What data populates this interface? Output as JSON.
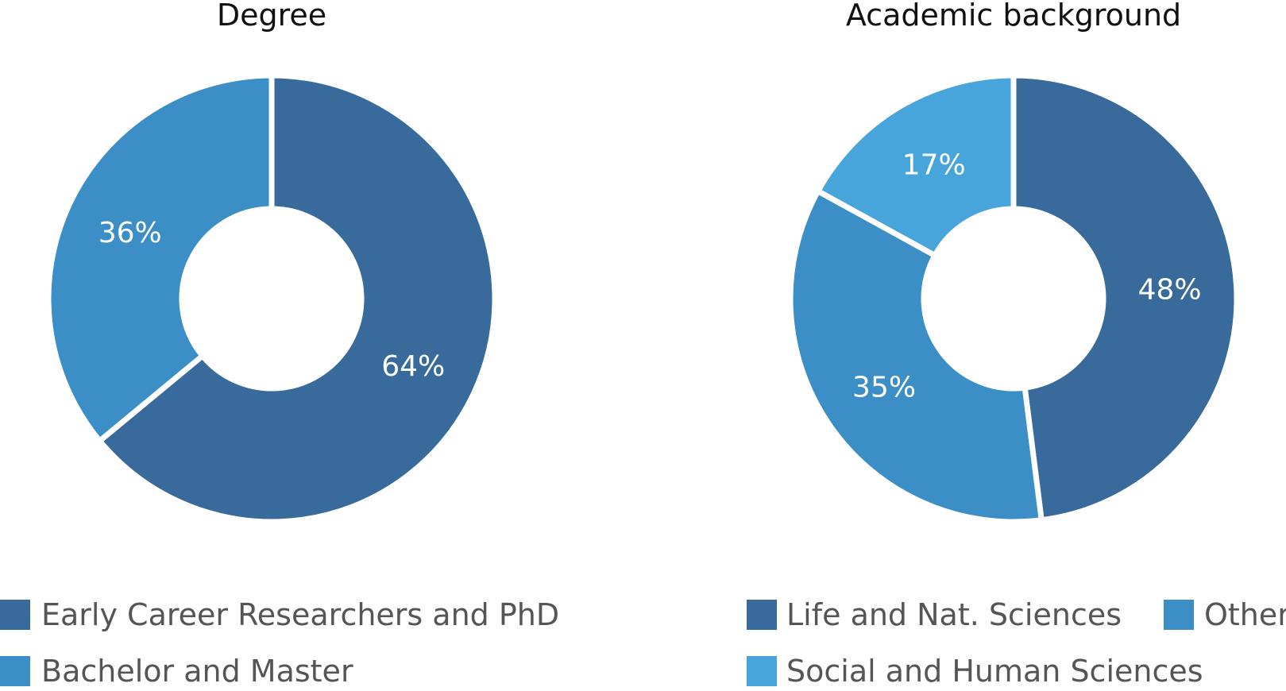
{
  "chart_data": [
    {
      "type": "pie",
      "donut": true,
      "title": "Degree",
      "categories": [
        "Early Career Researchers and PhD",
        "Bachelor and Master"
      ],
      "values": [
        64,
        36
      ],
      "value_labels": [
        "64%",
        "36%"
      ],
      "colors": [
        "#386a9b",
        "#3b8ec6"
      ],
      "legend": [
        {
          "label": "Early Career Researchers and PhD",
          "color": "#386a9b"
        },
        {
          "label": "Bachelor and Master",
          "color": "#3b8ec6"
        }
      ],
      "legend_position": "bottom"
    },
    {
      "type": "pie",
      "donut": true,
      "title": "Academic background",
      "categories": [
        "Life and Nat. Sciences",
        "Other",
        "Social and Human Sciences"
      ],
      "values": [
        48,
        35,
        17
      ],
      "value_labels": [
        "48%",
        "35%",
        "17%"
      ],
      "colors": [
        "#386a9b",
        "#3b8ec6",
        "#47a5dc"
      ],
      "legend": [
        {
          "label": "Life and Nat. Sciences",
          "color": "#386a9b"
        },
        {
          "label": "Other",
          "color": "#3b8ec6"
        },
        {
          "label": "Social and Human Sciences",
          "color": "#47a5dc"
        }
      ],
      "legend_position": "bottom"
    }
  ]
}
